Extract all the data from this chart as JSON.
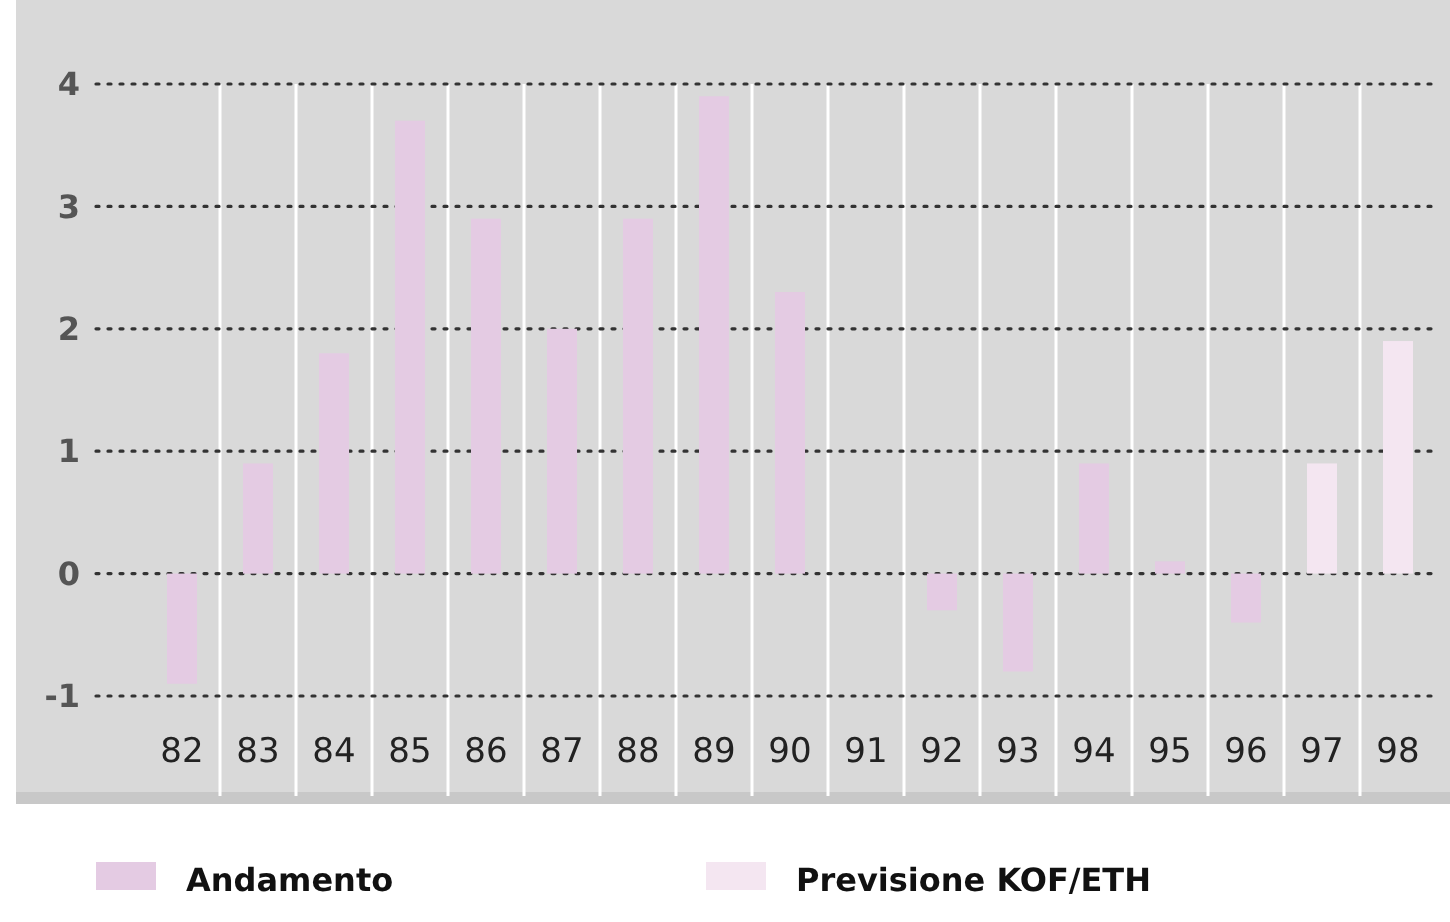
{
  "chart_data": {
    "type": "bar",
    "categories": [
      "82",
      "83",
      "84",
      "85",
      "86",
      "87",
      "88",
      "89",
      "90",
      "91",
      "92",
      "93",
      "94",
      "95",
      "96",
      "97",
      "98"
    ],
    "series": [
      {
        "name": "Andamento",
        "color": "#e4cbe3",
        "values": [
          -0.9,
          0.9,
          1.8,
          3.7,
          2.9,
          2.0,
          2.9,
          3.9,
          2.3,
          0,
          -0.3,
          -0.8,
          0.9,
          0.1,
          -0.4,
          null,
          null
        ]
      },
      {
        "name": "Previsione KOF/ETH",
        "color": "#f4e6f1",
        "values": [
          null,
          null,
          null,
          null,
          null,
          null,
          null,
          null,
          null,
          null,
          null,
          null,
          null,
          null,
          null,
          0.9,
          1.9
        ]
      }
    ],
    "ylim": [
      -1,
      4
    ],
    "yticks": [
      -1,
      0,
      1,
      2,
      3,
      4
    ],
    "grid": true,
    "line_style": "dotted",
    "legend": "bottom"
  }
}
